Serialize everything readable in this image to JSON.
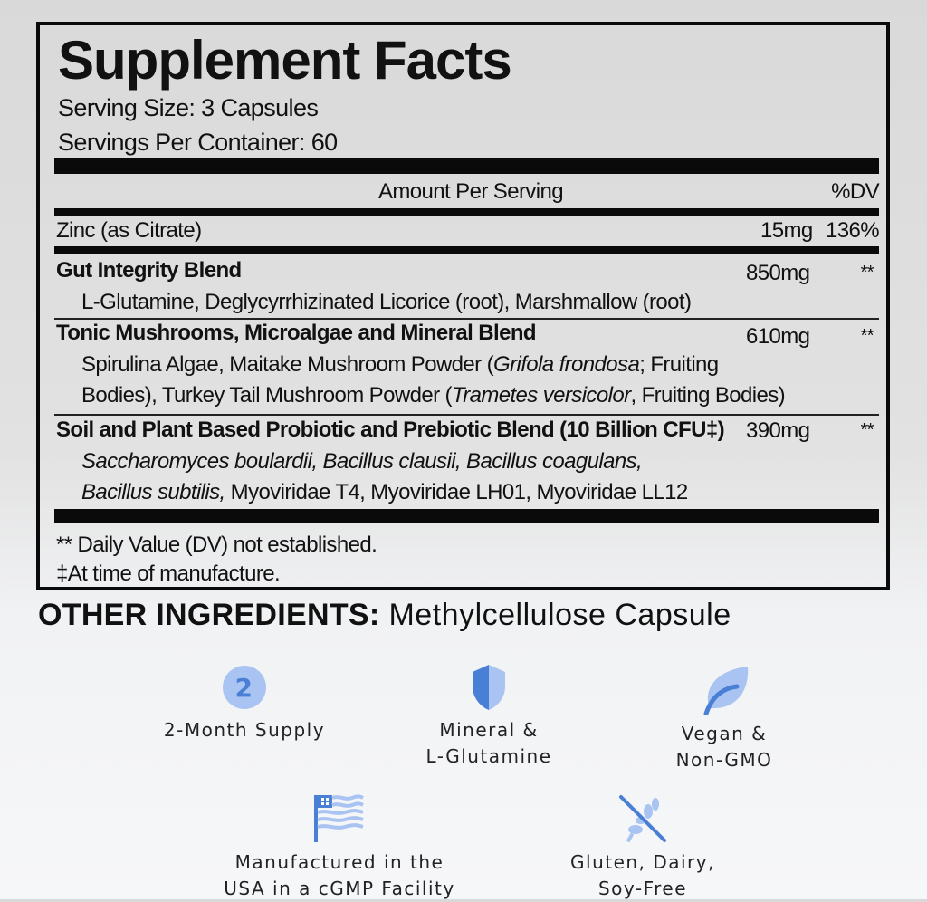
{
  "facts": {
    "title": "Supplement Facts",
    "serving_size": "Serving Size: 3 Capsules",
    "servings_per_container": "Servings Per Container: 60",
    "header_amount": "Amount Per Serving",
    "header_dv": "%DV",
    "rows": [
      {
        "name": "Zinc (as Citrate)",
        "amount": "15mg",
        "dv": "136%"
      },
      {
        "name": "Gut Integrity Blend",
        "amount": "850mg",
        "dv": "**",
        "detail": "L-Glutamine, Deglycyrrhizinated Licorice (root), Marshmallow (root)"
      },
      {
        "name": "Tonic Mushrooms, Microalgae and Mineral Blend",
        "amount": "610mg",
        "dv": "**",
        "detail_1a": "Spirulina Algae, Maitake Mushroom Powder (",
        "detail_1b": "Grifola frondosa",
        "detail_1c": "; Fruiting",
        "detail_2a": "Bodies), Turkey Tail Mushroom Powder (",
        "detail_2b": "Trametes versicolor",
        "detail_2c": ", Fruiting Bodies)"
      },
      {
        "name": "Soil and Plant Based Probiotic and Prebiotic Blend (10 Billion CFU‡)",
        "amount": "390mg",
        "dv": "**",
        "detail_1": "Saccharomyces boulardii, Bacillus clausii, Bacillus coagulans,",
        "detail_2a": "Bacillus subtilis,",
        "detail_2b": " Myoviridae T4, Myoviridae LH01, Myoviridae LL12"
      }
    ],
    "footnote_1": "** Daily Value (DV) not established.",
    "footnote_2": "‡At time of manufacture."
  },
  "other_ingredients": {
    "label": "OTHER INGREDIENTS:",
    "value": " Methylcellulose Capsule"
  },
  "badges": [
    {
      "icon": "number-2-circle-icon",
      "line1": "2-Month Supply"
    },
    {
      "icon": "shield-icon",
      "line1": "Mineral &",
      "line2": "L-Glutamine"
    },
    {
      "icon": "leaf-icon",
      "line1": "Vegan &",
      "line2": "Non-GMO"
    },
    {
      "icon": "usa-flag-icon",
      "line1": "Manufactured in the",
      "line2": "USA in a cGMP Facility"
    },
    {
      "icon": "no-wheat-icon",
      "line1": "Gluten, Dairy,",
      "line2": "Soy-Free"
    }
  ],
  "badge_number": "2",
  "colors": {
    "icon_dark": "#4a7fd6",
    "icon_light": "#a9c3f2"
  }
}
